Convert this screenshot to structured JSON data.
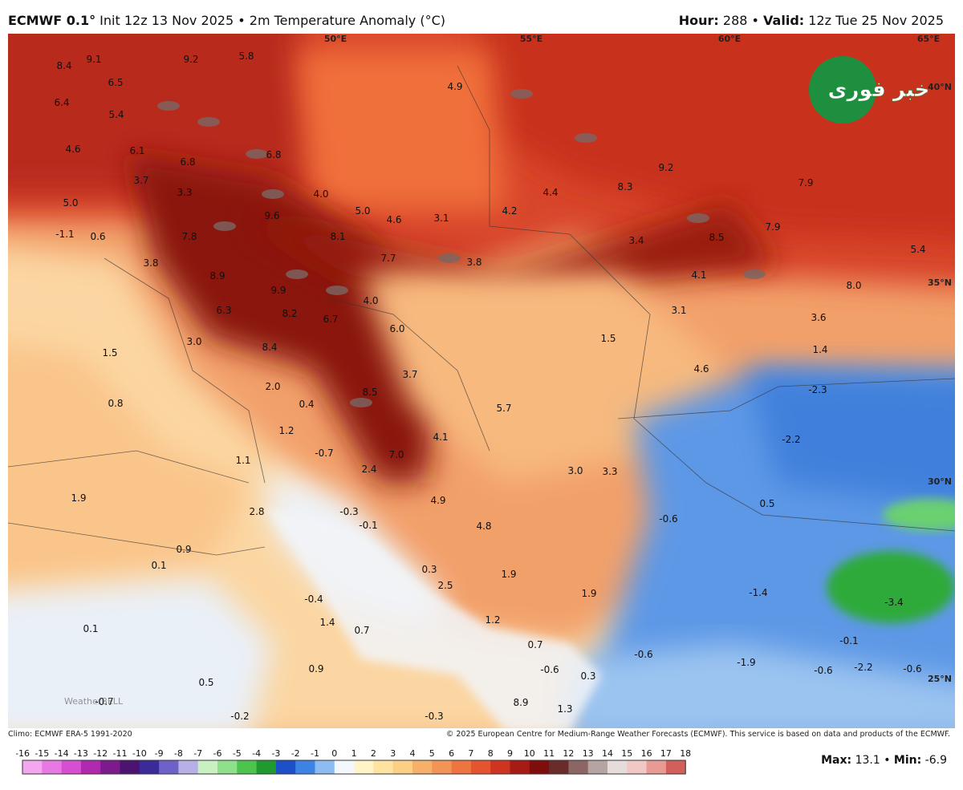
{
  "header": {
    "left_parts": [
      {
        "text": "ECMWF 0.1°",
        "bold": true
      },
      {
        "text": " Init 12z 13 Nov 2025 • 2m Temperature Anomaly (°C)",
        "bold": false
      }
    ],
    "right_parts": [
      {
        "text": "Hour:",
        "bold": true
      },
      {
        "text": " 288 • ",
        "bold": false
      },
      {
        "text": "Valid:",
        "bold": true
      },
      {
        "text": " 12z Tue 25 Nov 2025",
        "bold": false
      }
    ]
  },
  "map": {
    "lon_labels": [
      "50°E",
      "55°E",
      "60°E",
      "65°E"
    ],
    "lat_labels": [
      "40°N",
      "35°N",
      "30°N",
      "25°N"
    ],
    "values": [
      "8.4",
      "9.1",
      "9.2",
      "5.8",
      "6.5",
      "6.4",
      "5.4",
      "4.9",
      "4.6",
      "6.1",
      "6.8",
      "6.8",
      "9.2",
      "3.7",
      "3.3",
      "4.0",
      "8.3",
      "7.9",
      "4.4",
      "5.0",
      "9.6",
      "5.0",
      "4.6",
      "3.1",
      "4.2",
      "-1.1",
      "0.6",
      "7.8",
      "8.1",
      "3.4",
      "8.5",
      "7.9",
      "5.4",
      "7.7",
      "3.8",
      "3.8",
      "8.9",
      "4.1",
      "8.0",
      "9.9",
      "4.0",
      "6.3",
      "8.2",
      "6.7",
      "3.1",
      "3.6",
      "6.0",
      "1.5",
      "3.0",
      "8.4",
      "1.4",
      "1.5",
      "3.7",
      "4.6",
      "2.0",
      "-2.3",
      "8.5",
      "0.8",
      "0.4",
      "5.7",
      "1.2",
      "4.1",
      "-2.2",
      "-0.7",
      "7.0",
      "1.1",
      "2.4",
      "3.0",
      "3.3",
      "1.9",
      "4.9",
      "0.5",
      "2.8",
      "-0.3",
      "-0.6",
      "-0.1",
      "4.8",
      "0.9",
      "0.1",
      "0.3",
      "1.9",
      "2.5",
      "-1.4",
      "1.9",
      "-0.4",
      "-3.4",
      "1.4",
      "1.2",
      "0.1",
      "0.7",
      "-0.1",
      "0.7",
      "-0.6",
      "0.9",
      "-1.9",
      "-2.2",
      "-0.6",
      "-0.6",
      "-0.6",
      "0.3",
      "0.5",
      "-0.7",
      "8.9",
      "1.3",
      "-0.2",
      "-0.3"
    ],
    "logo_text": "خبر فوری",
    "watermark": "WeatherBELL"
  },
  "footer": {
    "climo": "Climo: ECMWF ERA-5 1991-2020",
    "copyright": "© 2025 European Centre for Medium-Range Weather Forecasts (ECMWF). This service is based on data and products of the ECMWF.",
    "stats_parts": [
      {
        "text": "Max:",
        "bold": true
      },
      {
        "text": " 13.1 • ",
        "bold": false
      },
      {
        "text": "Min:",
        "bold": true
      },
      {
        "text": " -6.9",
        "bold": false
      }
    ]
  },
  "colorbar": {
    "ticks": [
      -16,
      -15,
      -14,
      -13,
      -12,
      -11,
      -10,
      -9,
      -8,
      -7,
      -6,
      -5,
      -4,
      -3,
      -2,
      -1,
      0,
      1,
      2,
      3,
      4,
      5,
      6,
      7,
      8,
      9,
      10,
      11,
      12,
      13,
      14,
      15,
      16,
      17,
      18
    ],
    "colors": [
      "#f4a6ee",
      "#e879e2",
      "#d64fd0",
      "#b02ab0",
      "#7d1a8c",
      "#4a1470",
      "#3a2a9a",
      "#6e62c8",
      "#b7b0e6",
      "#c8f0c0",
      "#8ee08a",
      "#4cc44e",
      "#1e9a2e",
      "#1c4fc8",
      "#3f82e6",
      "#8dbcf2",
      "#f4f8fc",
      "#fff3c8",
      "#fde2a0",
      "#fbcf84",
      "#f7b06a",
      "#f39456",
      "#ee7440",
      "#e45430",
      "#cf3420",
      "#a81a14",
      "#7e0e0c",
      "#6a2c2a",
      "#8c6664",
      "#b4a4a2",
      "#e6dcdc",
      "#f0c8c4",
      "#e89a94",
      "#d2605a",
      "#b83434"
    ]
  }
}
